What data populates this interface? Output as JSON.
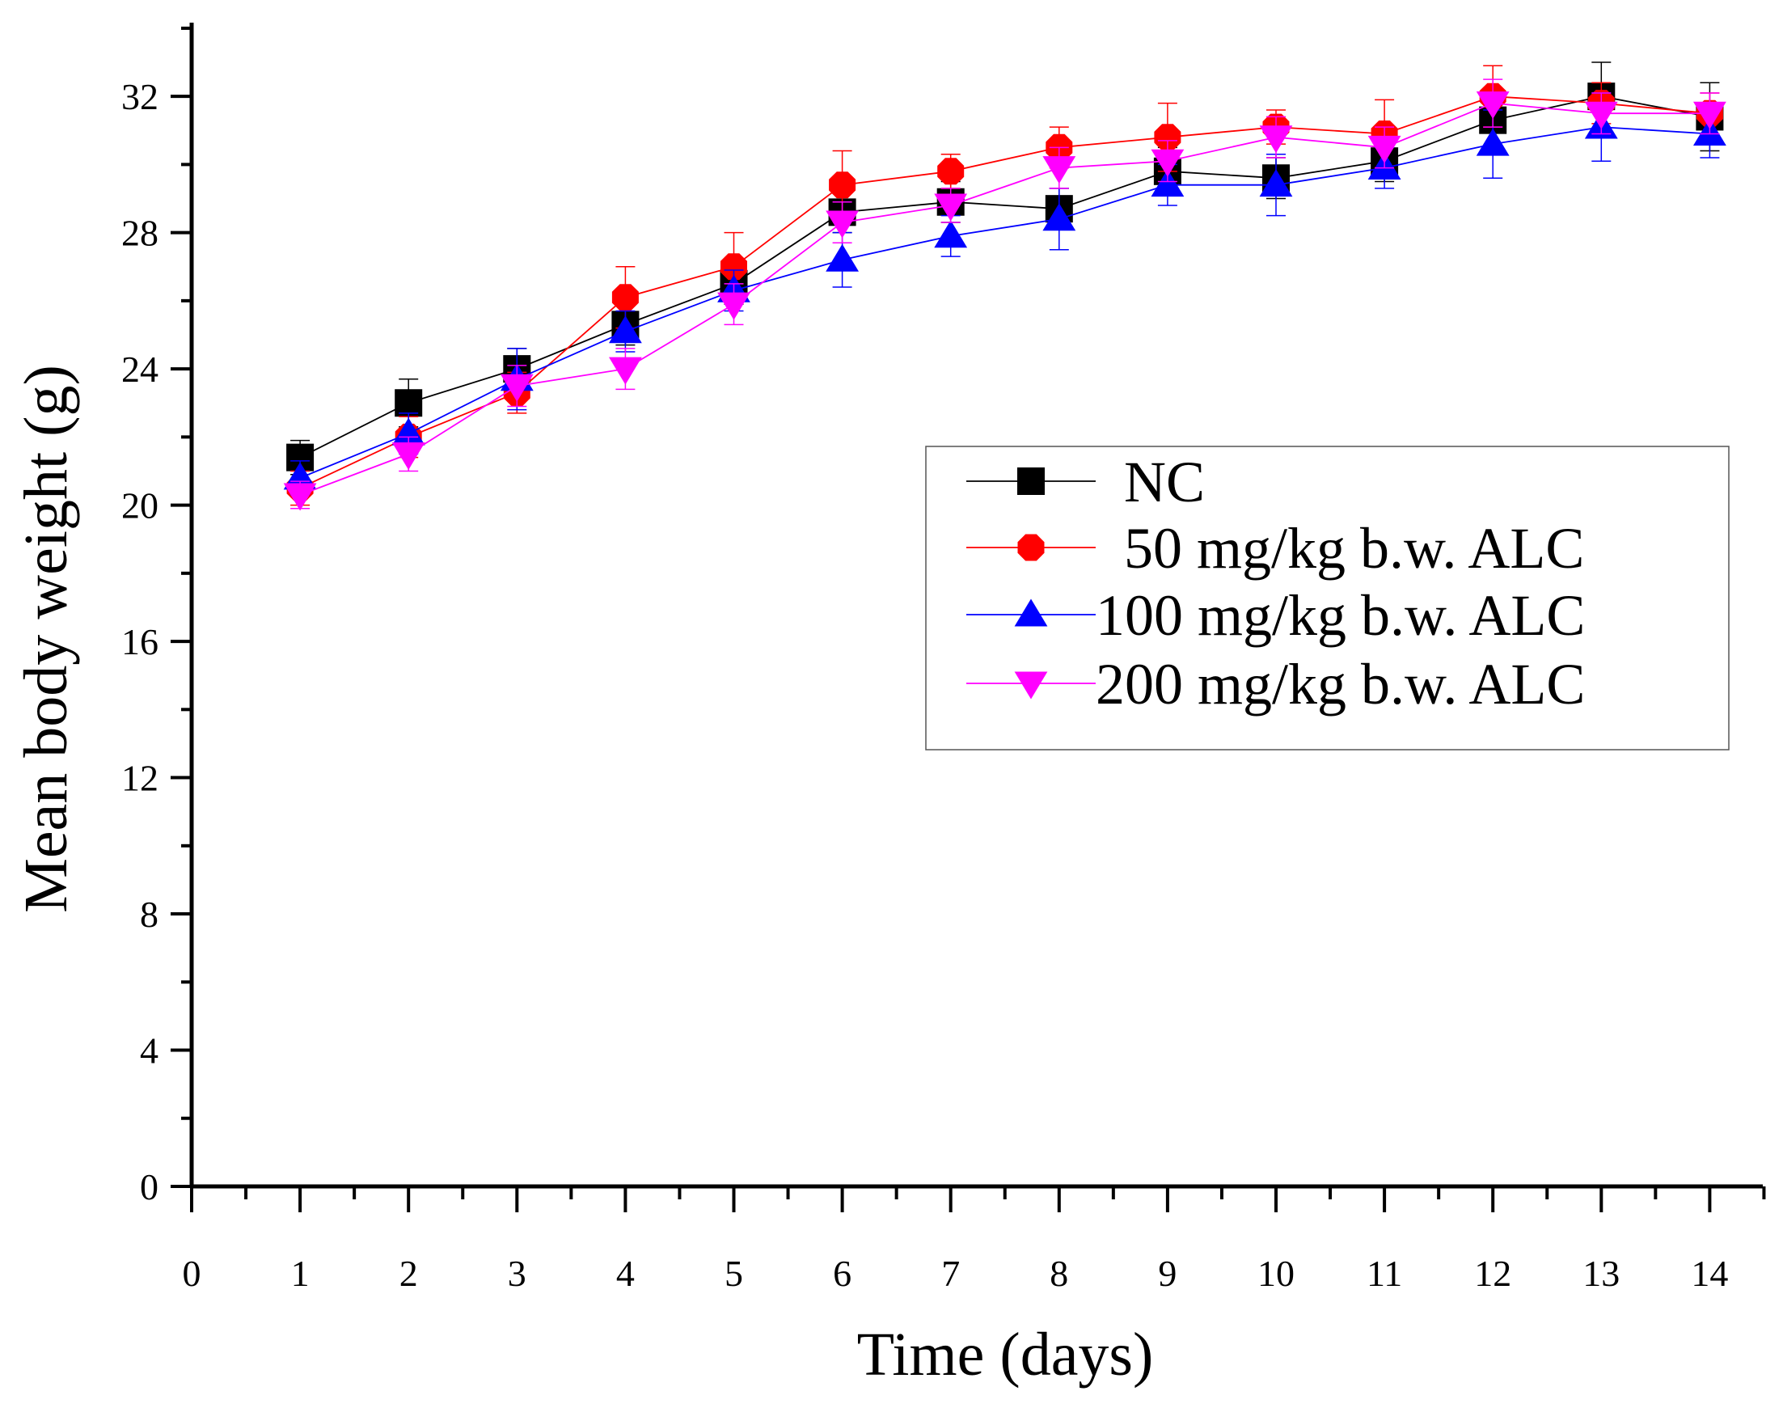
{
  "chart_data": {
    "type": "line",
    "title": "",
    "xlabel": "Time (days)",
    "ylabel": "Mean body weight (g)",
    "xlim": [
      0,
      14.5
    ],
    "ylim": [
      0,
      34
    ],
    "x_ticks": [
      "0",
      "1",
      "2",
      "3",
      "4",
      "5",
      "6",
      "7",
      "8",
      "9",
      "10",
      "11",
      "12",
      "13",
      "14"
    ],
    "y_ticks": [
      "0",
      "4",
      "8",
      "12",
      "16",
      "20",
      "24",
      "28",
      "32"
    ],
    "grid": false,
    "legend_position": "center-right",
    "x": [
      1,
      2,
      3,
      4,
      5,
      6,
      7,
      8,
      9,
      10,
      11,
      12,
      13,
      14
    ],
    "series": [
      {
        "name": "NC",
        "color": "#000000",
        "marker": "square",
        "values": [
          21.4,
          23.0,
          24.0,
          25.3,
          26.5,
          28.6,
          28.9,
          28.7,
          29.8,
          29.6,
          30.1,
          31.3,
          32.0,
          31.4
        ],
        "errors": [
          0.5,
          0.7,
          0.6,
          0.6,
          0.6,
          0.6,
          0.6,
          0.6,
          0.7,
          0.6,
          0.6,
          0.9,
          1.0,
          1.0
        ]
      },
      {
        "name": "50 mg/kg b.w. ALC",
        "color": "#ff0000",
        "marker": "circle",
        "values": [
          20.5,
          22.0,
          23.3,
          26.1,
          27.0,
          29.4,
          29.8,
          30.5,
          30.8,
          31.1,
          30.9,
          32.0,
          31.8,
          31.5
        ],
        "errors": [
          0.5,
          0.6,
          0.6,
          0.9,
          1.0,
          1.0,
          0.5,
          0.6,
          1.0,
          0.5,
          1.0,
          0.9,
          0.6,
          0.6
        ]
      },
      {
        "name": "100 mg/kg b.w. ALC",
        "color": "#0000ff",
        "marker": "triangle-up",
        "values": [
          20.8,
          22.1,
          23.7,
          25.1,
          26.3,
          27.2,
          27.9,
          28.4,
          29.4,
          29.4,
          29.9,
          30.6,
          31.1,
          30.9
        ],
        "errors": [
          0.5,
          0.6,
          0.9,
          0.6,
          0.6,
          0.8,
          0.6,
          0.9,
          0.6,
          0.9,
          0.6,
          1.0,
          1.0,
          0.7
        ]
      },
      {
        "name": "200 mg/kg b.w. ALC",
        "color": "#ff00ff",
        "marker": "triangle-down",
        "values": [
          20.3,
          21.5,
          23.5,
          24.0,
          25.9,
          28.3,
          28.8,
          29.9,
          30.1,
          30.8,
          30.5,
          31.8,
          31.5,
          31.5
        ],
        "errors": [
          0.4,
          0.5,
          0.6,
          0.6,
          0.6,
          0.6,
          0.5,
          0.6,
          0.6,
          0.6,
          0.6,
          0.7,
          0.6,
          0.6
        ]
      }
    ]
  }
}
